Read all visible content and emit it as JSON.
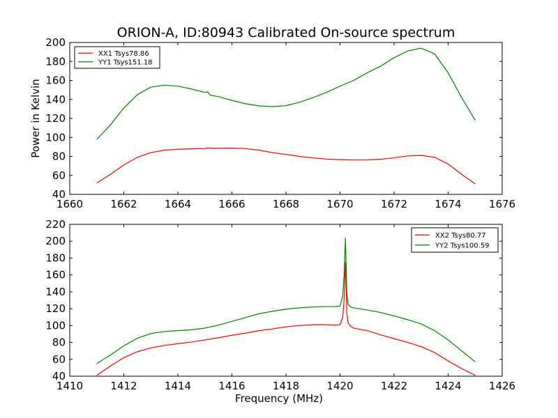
{
  "figure": {
    "title": "ORION-A, ID:80943 Calibrated On-source spectrum"
  },
  "chart_data": [
    {
      "type": "line",
      "title": "ORION-A, ID:80943 Calibrated On-source spectrum",
      "xlabel": "",
      "ylabel": "Power in Kelvin",
      "xlim": [
        1660,
        1676
      ],
      "ylim": [
        40,
        200
      ],
      "xticks": [
        1660,
        1662,
        1664,
        1666,
        1668,
        1670,
        1672,
        1674,
        1676
      ],
      "yticks": [
        40,
        60,
        80,
        100,
        120,
        140,
        160,
        180,
        200
      ],
      "legend": "top-left",
      "series": [
        {
          "name": "XX1 Tsys78.86",
          "color": "#ff0000",
          "x": [
            1661.0,
            1661.5,
            1662.0,
            1662.5,
            1663.0,
            1663.5,
            1664.0,
            1664.5,
            1665.0,
            1665.1,
            1665.3,
            1665.5,
            1666.0,
            1666.5,
            1667.0,
            1667.5,
            1668.0,
            1668.5,
            1669.0,
            1669.5,
            1670.0,
            1670.5,
            1671.0,
            1671.5,
            1672.0,
            1672.5,
            1673.0,
            1673.5,
            1674.0,
            1674.5,
            1675.0
          ],
          "y": [
            52,
            61,
            71,
            79,
            84,
            86.5,
            87.5,
            88,
            88.2,
            89,
            88.6,
            88.6,
            88.8,
            88.2,
            86.5,
            84,
            82,
            80,
            78.4,
            77.2,
            76.5,
            76.2,
            76.3,
            77,
            78.5,
            80.5,
            81,
            79,
            72,
            61,
            51
          ]
        },
        {
          "name": "YY1 Tsys151.18",
          "color": "#008000",
          "x": [
            1661.0,
            1661.5,
            1662.0,
            1662.5,
            1663.0,
            1663.5,
            1664.0,
            1664.5,
            1665.0,
            1665.1,
            1665.2,
            1665.5,
            1666.0,
            1666.5,
            1667.0,
            1667.5,
            1668.0,
            1668.5,
            1669.0,
            1669.5,
            1670.0,
            1670.5,
            1671.0,
            1671.5,
            1672.0,
            1672.5,
            1673.0,
            1673.5,
            1674.0,
            1674.5,
            1675.0
          ],
          "y": [
            98,
            113,
            131,
            145,
            153,
            155,
            154,
            151,
            147.5,
            148,
            144.5,
            143,
            139,
            135.5,
            133.2,
            132.5,
            133.5,
            137,
            142,
            147.5,
            154,
            160,
            168,
            175,
            184,
            191,
            194,
            188,
            168,
            142,
            118
          ]
        }
      ]
    },
    {
      "type": "line",
      "title": "",
      "xlabel": "Frequency (MHz)",
      "ylabel": "",
      "xlim": [
        1410,
        1426
      ],
      "ylim": [
        40,
        220
      ],
      "xticks": [
        1410,
        1412,
        1414,
        1416,
        1418,
        1420,
        1422,
        1424,
        1426
      ],
      "yticks": [
        40,
        60,
        80,
        100,
        120,
        140,
        160,
        180,
        200,
        220
      ],
      "legend": "top-right",
      "series": [
        {
          "name": "XX2 Tsys80.77",
          "color": "#ff0000",
          "x": [
            1411.0,
            1411.5,
            1412.0,
            1412.5,
            1413.0,
            1413.5,
            1414.0,
            1414.5,
            1415.0,
            1415.5,
            1416.0,
            1416.5,
            1417.0,
            1417.5,
            1418.0,
            1418.5,
            1419.0,
            1419.5,
            1419.8,
            1420.0,
            1420.1,
            1420.15,
            1420.2,
            1420.25,
            1420.3,
            1420.4,
            1420.5,
            1421.0,
            1421.5,
            1422.0,
            1422.5,
            1423.0,
            1423.5,
            1424.0,
            1424.5,
            1425.0
          ],
          "y": [
            41,
            52,
            62,
            69,
            73.5,
            76.5,
            78.5,
            80.5,
            83,
            85.5,
            88.5,
            91,
            94,
            96,
            98.5,
            100,
            101,
            101,
            100.5,
            101,
            110,
            130,
            175,
            115,
            103,
            99,
            97,
            94,
            89,
            84.5,
            80,
            75,
            68,
            58,
            49,
            41
          ]
        },
        {
          "name": "YY2 Tsys100.59",
          "color": "#008000",
          "x": [
            1411.0,
            1411.5,
            1412.0,
            1412.5,
            1413.0,
            1413.5,
            1414.0,
            1414.5,
            1415.0,
            1415.5,
            1416.0,
            1416.5,
            1417.0,
            1417.5,
            1418.0,
            1418.5,
            1419.0,
            1419.5,
            1419.8,
            1420.0,
            1420.1,
            1420.15,
            1420.2,
            1420.25,
            1420.3,
            1420.4,
            1420.5,
            1421.0,
            1421.5,
            1422.0,
            1422.5,
            1423.0,
            1423.5,
            1424.0,
            1424.5,
            1425.0
          ],
          "y": [
            55,
            65,
            76,
            85,
            90.5,
            93,
            94,
            95,
            97,
            100.5,
            105,
            109.5,
            114,
            117,
            119.5,
            121,
            122,
            122.5,
            122.5,
            123,
            135,
            160,
            204,
            140,
            125,
            122,
            121,
            118.5,
            115.5,
            111.5,
            107,
            102,
            94,
            83,
            70,
            57
          ]
        }
      ]
    }
  ]
}
